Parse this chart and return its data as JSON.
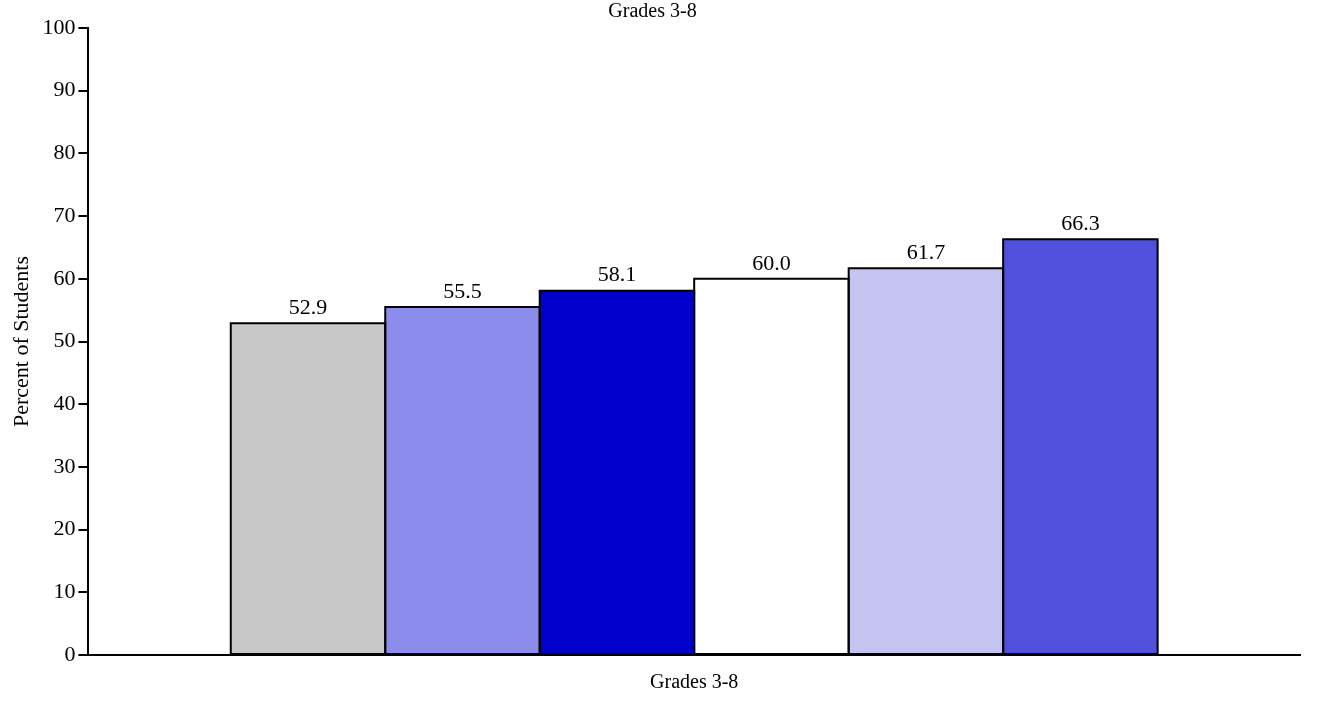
{
  "chart_data": {
    "type": "bar",
    "title": "Grades 3-8",
    "ylabel": "Percent of Students",
    "categories": [
      "Grades 3-8"
    ],
    "series": [
      {
        "color": "#c8c8c8",
        "values": [
          52.9
        ],
        "value_labels": [
          "52.9"
        ]
      },
      {
        "color": "#8c8cec",
        "values": [
          55.5
        ],
        "value_labels": [
          "55.5"
        ]
      },
      {
        "color": "#0000cc",
        "values": [
          58.1
        ],
        "value_labels": [
          "58.1"
        ]
      },
      {
        "color": "#ffffff",
        "values": [
          60.0
        ],
        "value_labels": [
          "60.0"
        ]
      },
      {
        "color": "#c4c4f2",
        "values": [
          61.7
        ],
        "value_labels": [
          "61.7"
        ]
      },
      {
        "color": "#5050dc",
        "values": [
          66.3
        ],
        "value_labels": [
          "66.3"
        ]
      }
    ],
    "ylim": [
      0,
      100
    ],
    "yticks": [
      0,
      10,
      20,
      30,
      40,
      50,
      60,
      70,
      80,
      90,
      100
    ],
    "grid": false,
    "legend": false
  }
}
